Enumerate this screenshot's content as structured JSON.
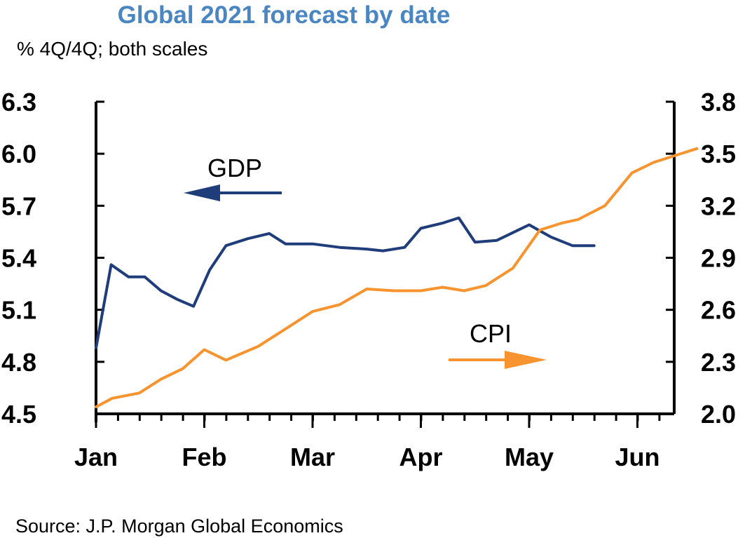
{
  "chart_data": {
    "type": "line",
    "title": "Global 2021 forecast by date",
    "subtitle": "% 4Q/4Q; both scales",
    "source": "Source: J.P. Morgan Global Economics",
    "x_labels": [
      "Jan",
      "Feb",
      "Mar",
      "Apr",
      "May",
      "Jun"
    ],
    "y_left": {
      "ticks": [
        "6.3",
        "6.0",
        "5.7",
        "5.4",
        "5.1",
        "4.8",
        "4.5"
      ],
      "range": [
        4.5,
        6.3
      ]
    },
    "y_right": {
      "ticks": [
        "3.8",
        "3.5",
        "3.2",
        "2.9",
        "2.6",
        "2.3",
        "2.0"
      ],
      "range": [
        2.0,
        3.8
      ]
    },
    "x_range": [
      0,
      5.3
    ],
    "series": [
      {
        "name": "GDP",
        "axis": "left",
        "color": "#1f3d7a",
        "points": [
          [
            0.0,
            4.88
          ],
          [
            0.14,
            5.36
          ],
          [
            0.3,
            5.29
          ],
          [
            0.45,
            5.29
          ],
          [
            0.6,
            5.21
          ],
          [
            0.75,
            5.16
          ],
          [
            0.9,
            5.12
          ],
          [
            1.05,
            5.33
          ],
          [
            1.2,
            5.47
          ],
          [
            1.4,
            5.51
          ],
          [
            1.6,
            5.54
          ],
          [
            1.75,
            5.48
          ],
          [
            2.0,
            5.48
          ],
          [
            2.25,
            5.46
          ],
          [
            2.5,
            5.45
          ],
          [
            2.65,
            5.44
          ],
          [
            2.85,
            5.46
          ],
          [
            3.0,
            5.57
          ],
          [
            3.2,
            5.6
          ],
          [
            3.35,
            5.63
          ],
          [
            3.5,
            5.49
          ],
          [
            3.7,
            5.5
          ],
          [
            3.9,
            5.56
          ],
          [
            4.0,
            5.59
          ],
          [
            4.2,
            5.52
          ],
          [
            4.4,
            5.47
          ],
          [
            4.6,
            5.47
          ]
        ]
      },
      {
        "name": "CPI",
        "axis": "right",
        "color": "#f7942f",
        "points": [
          [
            0.0,
            2.04
          ],
          [
            0.15,
            2.09
          ],
          [
            0.4,
            2.12
          ],
          [
            0.6,
            2.2
          ],
          [
            0.8,
            2.26
          ],
          [
            1.0,
            2.37
          ],
          [
            1.2,
            2.31
          ],
          [
            1.5,
            2.39
          ],
          [
            1.75,
            2.49
          ],
          [
            2.0,
            2.59
          ],
          [
            2.25,
            2.63
          ],
          [
            2.5,
            2.72
          ],
          [
            2.75,
            2.71
          ],
          [
            3.0,
            2.71
          ],
          [
            3.2,
            2.73
          ],
          [
            3.4,
            2.71
          ],
          [
            3.6,
            2.74
          ],
          [
            3.85,
            2.84
          ],
          [
            4.1,
            3.06
          ],
          [
            4.3,
            3.1
          ],
          [
            4.45,
            3.12
          ],
          [
            4.7,
            3.2
          ],
          [
            4.95,
            3.39
          ],
          [
            5.15,
            3.45
          ],
          [
            5.35,
            3.49
          ],
          [
            5.55,
            3.53
          ]
        ]
      }
    ],
    "annotations": [
      {
        "text": "GDP",
        "arrow": "left"
      },
      {
        "text": "CPI",
        "arrow": "right"
      }
    ],
    "grid": false,
    "legend": "annotations"
  }
}
